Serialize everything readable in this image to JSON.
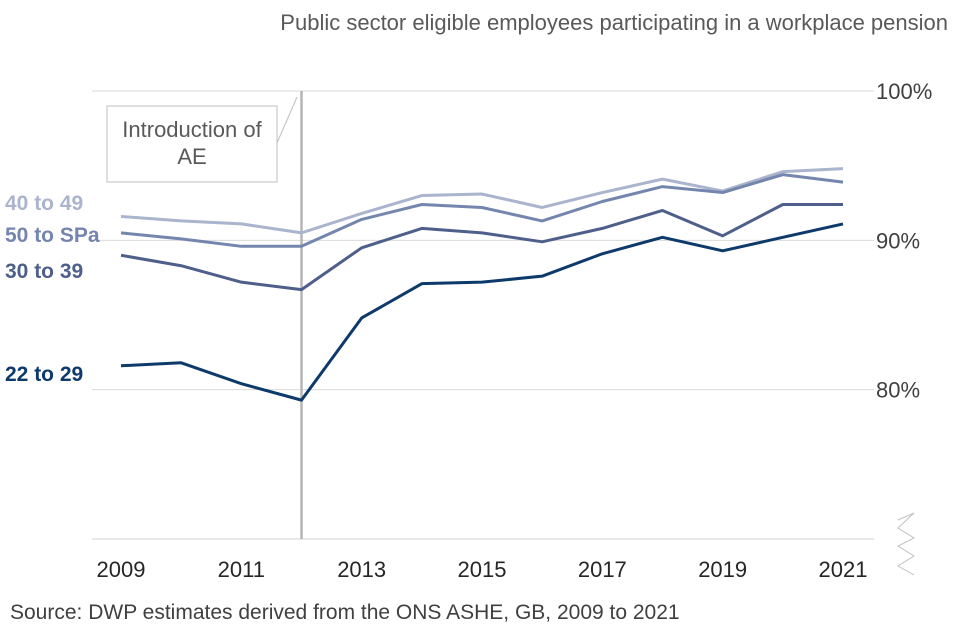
{
  "chart_data": {
    "type": "line",
    "title": "Public sector eligible employees participating in a workplace pension",
    "x": [
      2009,
      2010,
      2011,
      2012,
      2013,
      2014,
      2015,
      2016,
      2017,
      2018,
      2019,
      2020,
      2021
    ],
    "x_tick_labels": [
      "2009",
      "2011",
      "2013",
      "2015",
      "2017",
      "2019",
      "2021"
    ],
    "y_tick_labels": [
      "100%",
      "90%",
      "80%"
    ],
    "ylim": [
      70,
      100
    ],
    "series": [
      {
        "name": "40 to 49",
        "color": "#aab4cc",
        "values": [
          91.6,
          91.3,
          91.1,
          90.5,
          91.8,
          93.0,
          93.1,
          92.2,
          93.2,
          94.1,
          93.3,
          94.6,
          94.8
        ]
      },
      {
        "name": "50 to SPa",
        "color": "#7486ae",
        "values": [
          90.5,
          90.1,
          89.6,
          89.6,
          91.4,
          92.4,
          92.2,
          91.3,
          92.6,
          93.6,
          93.2,
          94.4,
          93.9
        ]
      },
      {
        "name": "30 to 39",
        "color": "#4d5f8a",
        "values": [
          89.0,
          88.3,
          87.2,
          86.7,
          89.5,
          90.8,
          90.5,
          89.9,
          90.8,
          92.0,
          90.3,
          92.4,
          92.4
        ]
      },
      {
        "name": "22 to 29",
        "color": "#0d3a6b",
        "values": [
          81.6,
          81.8,
          80.4,
          79.3,
          84.8,
          87.1,
          87.2,
          87.6,
          89.1,
          90.2,
          89.3,
          90.2,
          91.1
        ]
      }
    ],
    "annotation": {
      "text_line1": "Introduction of",
      "text_line2": "AE",
      "x": 2012
    },
    "source": "Source: DWP estimates derived from the ONS ASHE, GB, 2009 to 2021",
    "grid": true,
    "axis_break": true
  }
}
